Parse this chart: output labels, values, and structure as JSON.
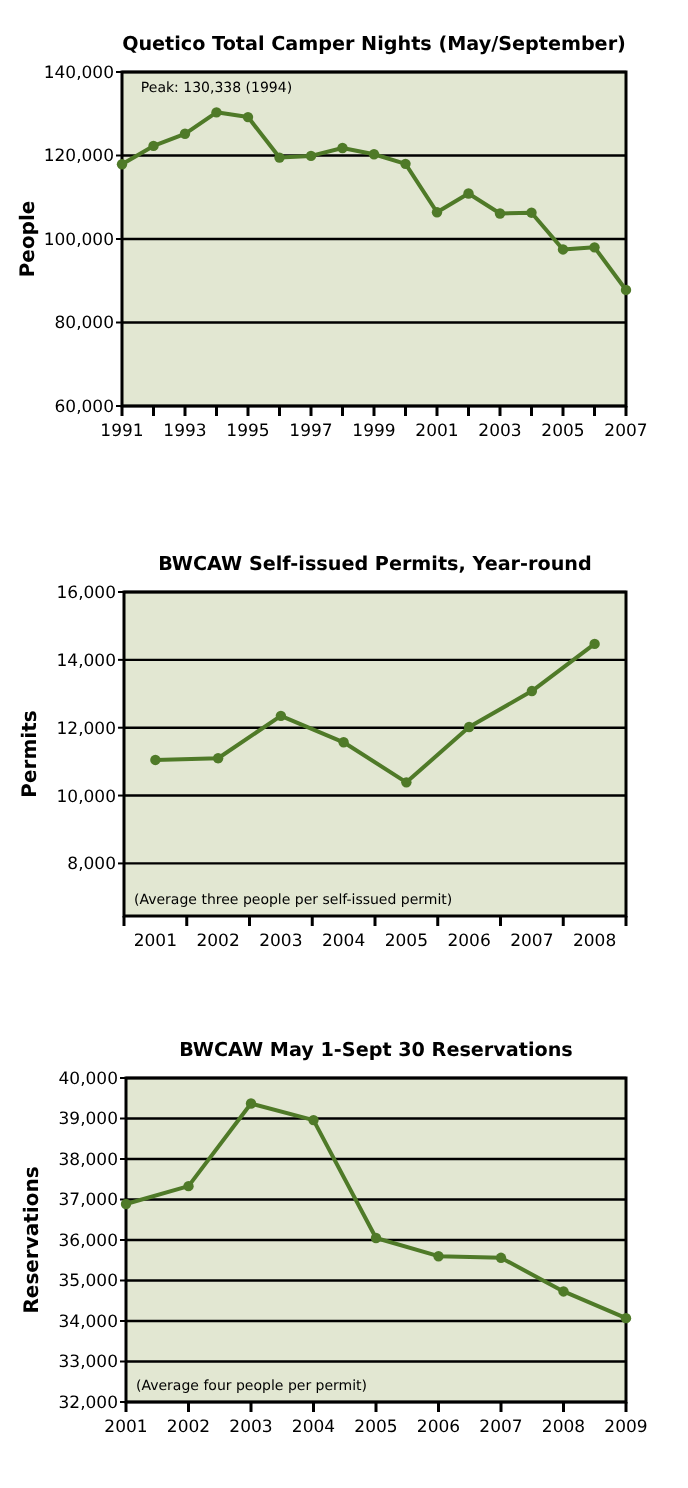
{
  "chart_data": [
    {
      "type": "line",
      "title": "Quetico Total Camper Nights (May/September)",
      "ylabel": "People",
      "x": [
        1991,
        1992,
        1993,
        1994,
        1995,
        1996,
        1997,
        1998,
        1999,
        2000,
        2001,
        2002,
        2003,
        2004,
        2005,
        2006,
        2007
      ],
      "series": [
        {
          "color": "#4f7a28",
          "values": [
            117900,
            122300,
            125200,
            130338,
            129200,
            119500,
            119900,
            121800,
            120300,
            118000,
            106400,
            110900,
            106100,
            106300,
            97500,
            98000,
            87800
          ]
        }
      ],
      "xlim": [
        1991,
        2007
      ],
      "xticks": [
        1991,
        {
          "value": 1992,
          "label": null
        },
        1993,
        {
          "value": 1994,
          "label": null
        },
        1995,
        {
          "value": 1996,
          "label": null
        },
        1997,
        {
          "value": 1998,
          "label": null
        },
        1999,
        {
          "value": 2000,
          "label": null
        },
        2001,
        {
          "value": 2002,
          "label": null
        },
        2003,
        {
          "value": 2004,
          "label": null
        },
        2005,
        {
          "value": 2006,
          "label": null
        },
        2007
      ],
      "ylim": [
        60000,
        140000
      ],
      "yticks": [
        {
          "value": 60000,
          "label": "60,000"
        },
        {
          "value": 80000,
          "label": "80,000"
        },
        {
          "value": 100000,
          "label": "100,000"
        },
        {
          "value": 120000,
          "label": "120,000"
        },
        {
          "value": 140000,
          "label": "140,000"
        }
      ],
      "annotations": [
        {
          "text": "Peak: 130,338 (1994)",
          "x": 1994,
          "y": 130338
        }
      ],
      "grid": "y",
      "marker": "circle",
      "line_style": "solid"
    },
    {
      "type": "line",
      "title": "BWCAW Self-issued Permits, Year-round",
      "ylabel": "Permits",
      "categories": [
        "2001",
        "2002",
        "2003",
        "2004",
        "2005",
        "2006",
        "2007",
        "2008"
      ],
      "series": [
        {
          "color": "#4f7a28",
          "values": [
            11050,
            11100,
            12350,
            11570,
            10390,
            12020,
            13080,
            14470
          ]
        }
      ],
      "ylim": [
        6450,
        16000
      ],
      "yticks": [
        {
          "value": 8000,
          "label": "8,000"
        },
        {
          "value": 10000,
          "label": "10,000"
        },
        {
          "value": 12000,
          "label": "12,000"
        },
        {
          "value": 14000,
          "label": "14,000"
        },
        {
          "value": 16000,
          "label": "16,000"
        }
      ],
      "annotations": [
        "(Average three people per self-issued permit)"
      ],
      "grid": "y",
      "marker": "circle",
      "line_style": "solid"
    },
    {
      "type": "line",
      "title": "BWCAW May 1-Sept 30 Reservations",
      "ylabel": "Reservations",
      "x": [
        2001,
        2002,
        2003,
        2004,
        2005,
        2006,
        2007,
        2008,
        2009
      ],
      "series": [
        {
          "color": "#4f7a28",
          "values": [
            36890,
            37330,
            39370,
            38960,
            36050,
            35600,
            35560,
            34730,
            34070
          ]
        }
      ],
      "xlim": [
        2001,
        2009
      ],
      "xticks": [
        2001,
        2002,
        2003,
        2004,
        2005,
        2006,
        2007,
        2008,
        2009
      ],
      "ylim": [
        32000,
        40000
      ],
      "yticks": [
        {
          "value": 32000,
          "label": "32,000"
        },
        {
          "value": 33000,
          "label": "33,000"
        },
        {
          "value": 34000,
          "label": "34,000"
        },
        {
          "value": 35000,
          "label": "35,000"
        },
        {
          "value": 36000,
          "label": "36,000"
        },
        {
          "value": 37000,
          "label": "37,000"
        },
        {
          "value": 38000,
          "label": "38,000"
        },
        {
          "value": 39000,
          "label": "39,000"
        },
        {
          "value": 40000,
          "label": "40,000"
        }
      ],
      "annotations": [
        "(Average four people per permit)"
      ],
      "grid": "y",
      "marker": "circle",
      "line_style": "solid"
    }
  ]
}
